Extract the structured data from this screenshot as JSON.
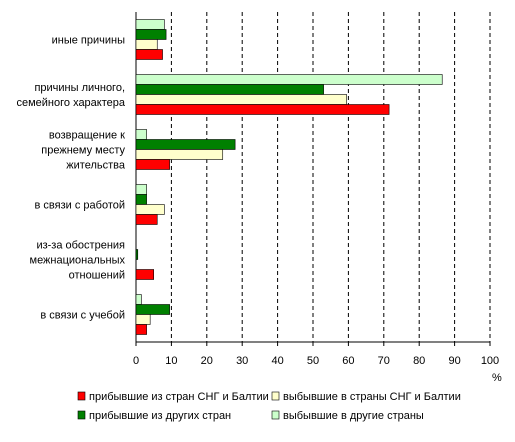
{
  "chart_data": {
    "type": "bar",
    "orientation": "horizontal",
    "title": "",
    "xlabel": "",
    "ylabel": "",
    "unit_label": "%",
    "xlim": [
      0,
      100
    ],
    "x_ticks": [
      0,
      10,
      20,
      30,
      40,
      50,
      60,
      70,
      80,
      90,
      100
    ],
    "grid": "vertical dashed",
    "legend_position": "bottom",
    "categories": [
      [
        "иные причины"
      ],
      [
        "причины личного,",
        "семейного характера"
      ],
      [
        "возвращение к",
        "прежнему месту",
        "жительства"
      ],
      [
        "в связи с работой"
      ],
      [
        "из-за обострения",
        "межнациональных",
        "отношений"
      ],
      [
        "в связи с учебой"
      ]
    ],
    "series": [
      {
        "name": "прибывшие из стран СНГ и Балтии",
        "color": "#ff0000",
        "values": [
          7.5,
          71.5,
          9.5,
          6,
          5,
          3
        ]
      },
      {
        "name": "выбывшие в страны СНГ и Балтии",
        "color": "#ffffcc",
        "values": [
          6,
          59.5,
          24.5,
          8,
          0,
          4
        ]
      },
      {
        "name": "прибывшие из других стран",
        "color": "#008000",
        "values": [
          8.5,
          53,
          28,
          3,
          0.5,
          9.5
        ]
      },
      {
        "name": "выбывшие в другие страны",
        "color": "#ccffcc",
        "values": [
          8,
          86.5,
          3,
          3,
          0,
          1.5
        ]
      }
    ]
  }
}
